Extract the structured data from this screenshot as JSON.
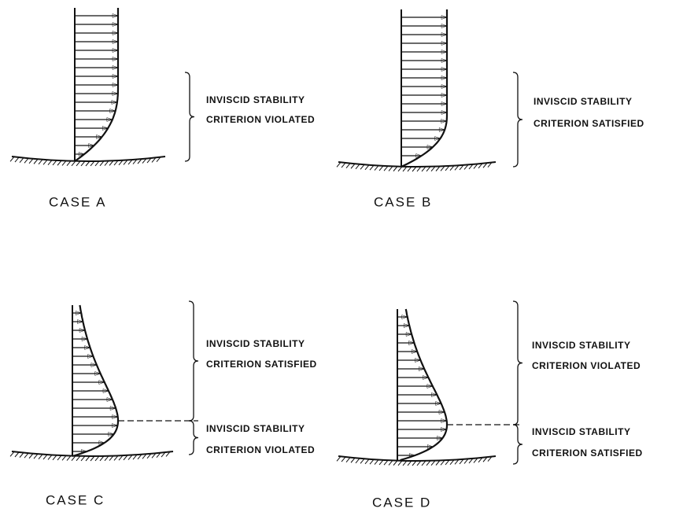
{
  "panels": [
    {
      "label": "CASE A",
      "notes": [
        [
          "INVISCID STABILITY",
          "CRITERION VIOLATED"
        ]
      ]
    },
    {
      "label": "CASE B",
      "notes": [
        [
          "INVISCID STABILITY",
          "CRITERION SATISFIED"
        ]
      ]
    },
    {
      "label": "CASE C",
      "notes": [
        [
          "INVISCID STABILITY",
          "CRITERION SATISFIED"
        ],
        [
          "INVISCID STABILITY",
          "CRITERION VIOLATED"
        ]
      ]
    },
    {
      "label": "CASE D",
      "notes": [
        [
          "INVISCID STABILITY",
          "CRITERION VIOLATED"
        ],
        [
          "INVISCID STABILITY",
          "CRITERION SATISFIED"
        ]
      ]
    }
  ]
}
